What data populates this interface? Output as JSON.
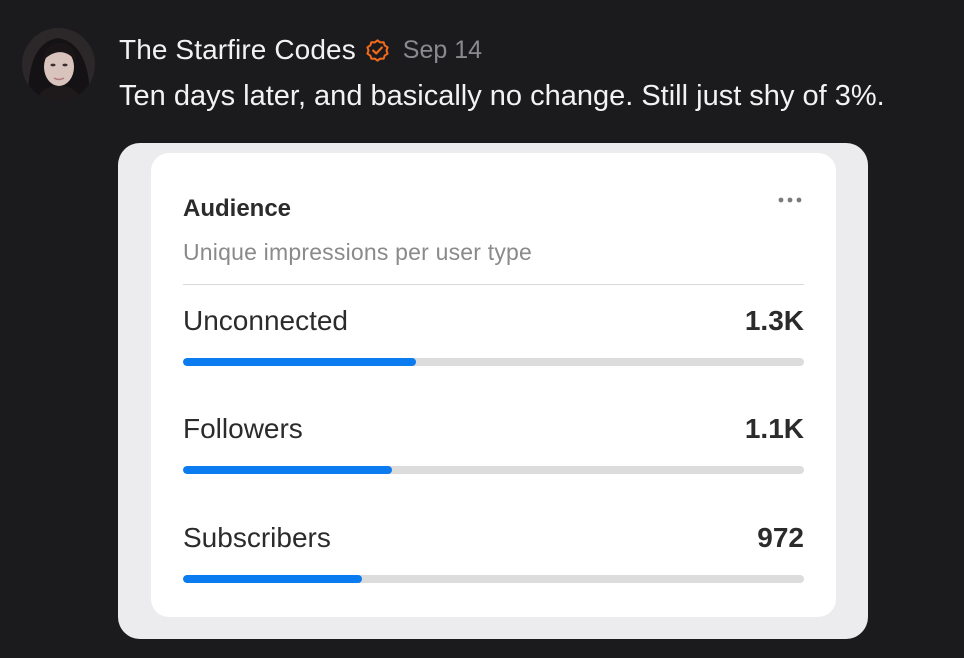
{
  "post": {
    "author_name": "The Starfire Codes",
    "date": "Sep 14",
    "text": "Ten days later, and basically no change. Still just shy of 3%."
  },
  "colors": {
    "background": "#1b1b1d",
    "verified_badge": "#f26b1d",
    "bar_fill": "#0a7cf0",
    "bar_track": "#dcdcdc"
  },
  "icons": {
    "verified": "check-circle-icon",
    "more": "more-horizontal-icon"
  },
  "audience_card": {
    "title": "Audience",
    "subtitle": "Unique impressions per user type",
    "metrics": [
      {
        "label": "Unconnected",
        "value": "1.3K",
        "fill_fraction": 0.376
      },
      {
        "label": "Followers",
        "value": "1.1K",
        "fill_fraction": 0.336
      },
      {
        "label": "Subscribers",
        "value": "972",
        "fill_fraction": 0.288
      }
    ]
  }
}
